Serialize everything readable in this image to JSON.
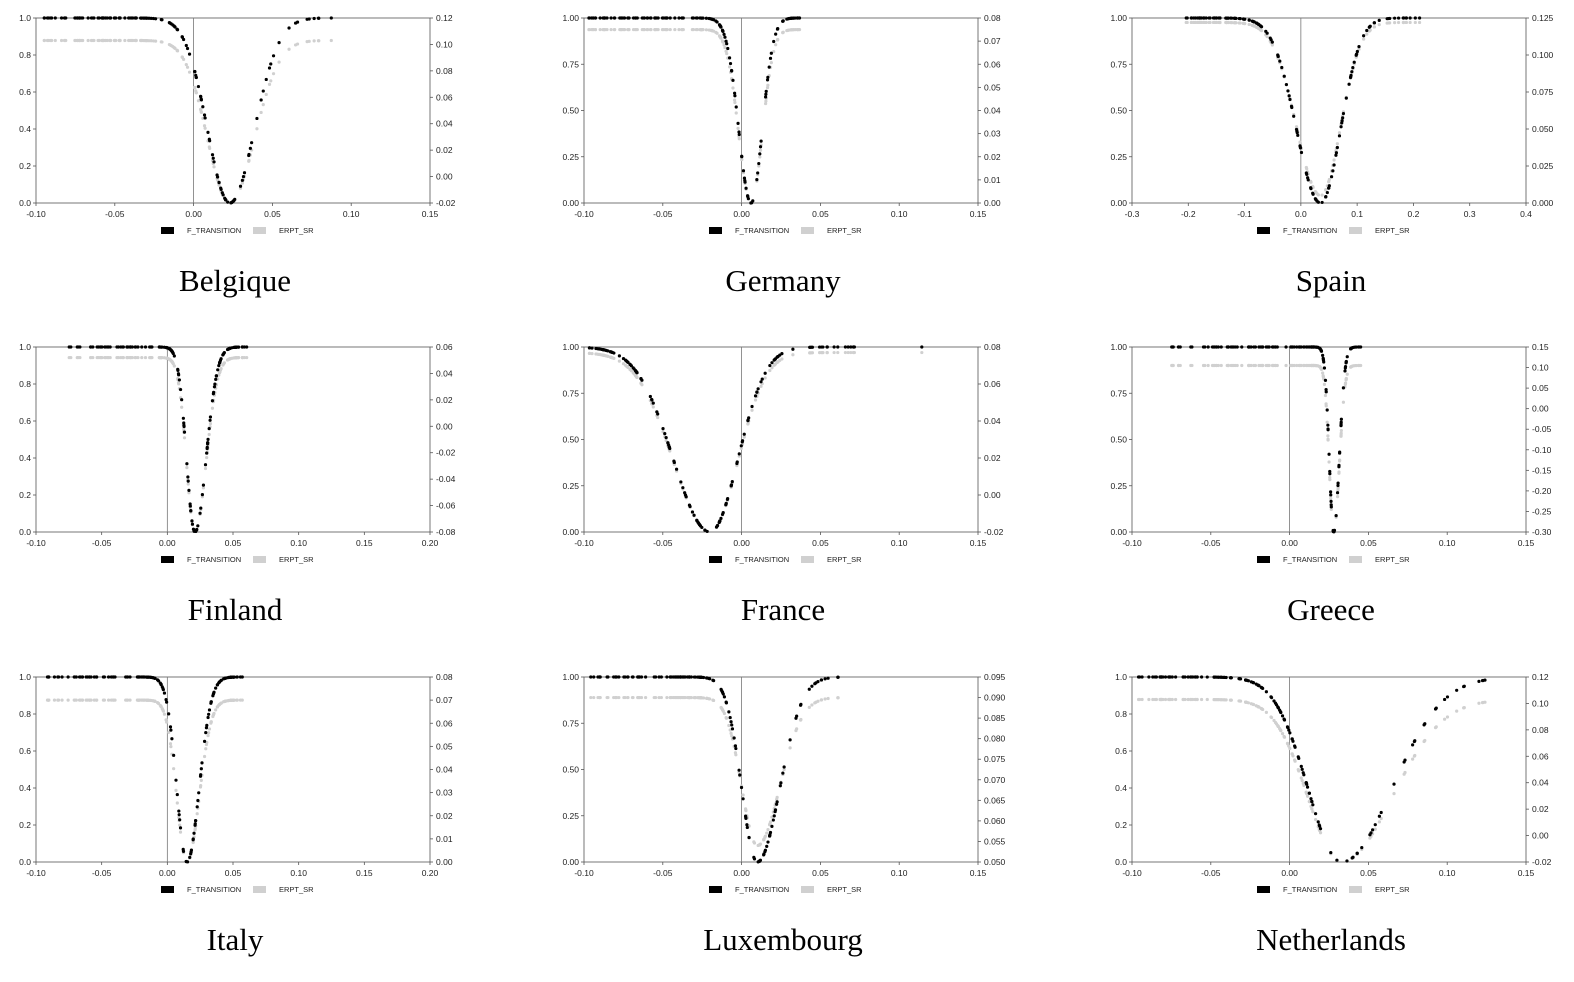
{
  "legend": {
    "series1": "F_TRANSITION",
    "series2": "ERPT_SR"
  },
  "colors": {
    "f_transition": "#000000",
    "erpt_sr": "#d0d0d0",
    "axis": "#555555"
  },
  "chart_data": [
    {
      "type": "scatter",
      "title": "Belgique",
      "xlim": [
        -0.1,
        0.15
      ],
      "xticks": [
        -0.1,
        -0.05,
        0.0,
        0.05,
        0.1,
        0.15
      ],
      "ylim": [
        0,
        1
      ],
      "yticks": [
        0.0,
        0.2,
        0.4,
        0.6,
        0.8,
        1.0
      ],
      "y2lim": [
        -0.02,
        0.12
      ],
      "y2ticks": [
        -0.02,
        0.0,
        0.02,
        0.04,
        0.06,
        0.08,
        0.1,
        0.12
      ],
      "ydec": 1,
      "y2dec": 2,
      "x_min": -0.095,
      "x_max": 0.128,
      "c": 0.023,
      "s_left": 0.02,
      "s_right": 0.022,
      "erpt_min": -0.02,
      "erpt_max": 0.103
    },
    {
      "type": "scatter",
      "title": "Germany",
      "xlim": [
        -0.1,
        0.15
      ],
      "xticks": [
        -0.1,
        -0.05,
        0.0,
        0.05,
        0.1,
        0.15
      ],
      "ylim": [
        0,
        1
      ],
      "yticks": [
        0.0,
        0.25,
        0.5,
        0.75,
        1.0
      ],
      "y2lim": [
        0.0,
        0.08
      ],
      "y2ticks": [
        0.0,
        0.01,
        0.02,
        0.03,
        0.04,
        0.05,
        0.06,
        0.07,
        0.08
      ],
      "ydec": 2,
      "y2dec": 2,
      "x_min": -0.098,
      "x_max": 0.128,
      "c": 0.006,
      "s_left": 0.011,
      "s_right": 0.01,
      "erpt_min": 0.0,
      "erpt_max": 0.075
    },
    {
      "type": "scatter",
      "title": "Spain",
      "xlim": [
        -0.3,
        0.4
      ],
      "xticks": [
        -0.3,
        -0.2,
        -0.1,
        0.0,
        0.1,
        0.2,
        0.3,
        0.4
      ],
      "ylim": [
        0,
        1
      ],
      "yticks": [
        0.0,
        0.25,
        0.5,
        0.75,
        1.0
      ],
      "y2lim": [
        0.0,
        0.125
      ],
      "y2ticks": [
        0.0,
        0.025,
        0.05,
        0.075,
        0.1,
        0.125
      ],
      "ydec": 2,
      "y2dec": 3,
      "x_min": -0.21,
      "x_max": 0.345,
      "c": 0.035,
      "s_left": 0.06,
      "s_right": 0.05,
      "erpt_min": 0.005,
      "erpt_max": 0.122
    },
    {
      "type": "scatter",
      "title": "Finland",
      "xlim": [
        -0.1,
        0.2
      ],
      "xticks": [
        -0.1,
        -0.05,
        0.0,
        0.05,
        0.1,
        0.15,
        0.2
      ],
      "ylim": [
        0,
        1
      ],
      "yticks": [
        0.0,
        0.2,
        0.4,
        0.6,
        0.8,
        1.0
      ],
      "y2lim": [
        -0.08,
        0.06
      ],
      "y2ticks": [
        -0.08,
        -0.06,
        -0.04,
        -0.02,
        0.0,
        0.02,
        0.04,
        0.06
      ],
      "ydec": 1,
      "y2dec": 2,
      "x_min": -0.075,
      "x_max": 0.175,
      "c": 0.021,
      "s_left": 0.009,
      "s_right": 0.012,
      "erpt_min": -0.08,
      "erpt_max": 0.052
    },
    {
      "type": "scatter",
      "title": "France",
      "xlim": [
        -0.1,
        0.15
      ],
      "xticks": [
        -0.1,
        -0.05,
        0.0,
        0.05,
        0.1,
        0.15
      ],
      "ylim": [
        0,
        1
      ],
      "yticks": [
        0.0,
        0.25,
        0.5,
        0.75,
        1.0
      ],
      "y2lim": [
        -0.02,
        0.08
      ],
      "y2ticks": [
        -0.02,
        0.0,
        0.02,
        0.04,
        0.06,
        0.08
      ],
      "ydec": 2,
      "y2dec": 2,
      "x_min": -0.098,
      "x_max": 0.128,
      "c": -0.02,
      "s_left": 0.033,
      "s_right": 0.025,
      "erpt_min": -0.02,
      "erpt_max": 0.077
    },
    {
      "type": "scatter",
      "title": "Greece",
      "xlim": [
        -0.1,
        0.15
      ],
      "xticks": [
        -0.1,
        -0.05,
        0.0,
        0.05,
        0.1,
        0.15
      ],
      "ylim": [
        0,
        1
      ],
      "yticks": [
        0.0,
        0.25,
        0.5,
        0.75,
        1.0
      ],
      "y2lim": [
        -0.3,
        0.15
      ],
      "y2ticks": [
        -0.3,
        -0.25,
        -0.2,
        -0.15,
        -0.1,
        -0.05,
        0.0,
        0.05,
        0.1,
        0.15
      ],
      "ydec": 2,
      "y2dec": 2,
      "x_min": -0.075,
      "x_max": 0.145,
      "c": 0.028,
      "s_left": 0.004,
      "s_right": 0.005,
      "erpt_min": -0.3,
      "erpt_max": 0.105
    },
    {
      "type": "scatter",
      "title": "Italy",
      "xlim": [
        -0.1,
        0.2
      ],
      "xticks": [
        -0.1,
        -0.05,
        0.0,
        0.05,
        0.1,
        0.15,
        0.2
      ],
      "ylim": [
        0,
        1
      ],
      "yticks": [
        0.0,
        0.2,
        0.4,
        0.6,
        0.8,
        1.0
      ],
      "y2lim": [
        0.0,
        0.08
      ],
      "y2ticks": [
        0.0,
        0.01,
        0.02,
        0.03,
        0.04,
        0.05,
        0.06,
        0.07,
        0.08
      ],
      "ydec": 1,
      "y2dec": 2,
      "x_min": -0.093,
      "x_max": 0.183,
      "c": 0.015,
      "s_left": 0.011,
      "s_right": 0.013,
      "erpt_min": 0.0,
      "erpt_max": 0.07
    },
    {
      "type": "scatter",
      "title": "Luxembourg",
      "xlim": [
        -0.1,
        0.15
      ],
      "xticks": [
        -0.1,
        -0.05,
        0.0,
        0.05,
        0.1,
        0.15
      ],
      "ylim": [
        0,
        1
      ],
      "yticks": [
        0.0,
        0.25,
        0.5,
        0.75,
        1.0
      ],
      "y2lim": [
        0.05,
        0.095
      ],
      "y2ticks": [
        0.05,
        0.055,
        0.06,
        0.065,
        0.07,
        0.075,
        0.08,
        0.085,
        0.09,
        0.095
      ],
      "ydec": 2,
      "y2dec": 3,
      "x_min": -0.096,
      "x_max": 0.128,
      "c": 0.01,
      "s_left": 0.014,
      "s_right": 0.02,
      "erpt_min": 0.054,
      "erpt_max": 0.09
    },
    {
      "type": "scatter",
      "title": "Netherlands",
      "xlim": [
        -0.1,
        0.15
      ],
      "xticks": [
        -0.1,
        -0.05,
        0.0,
        0.05,
        0.1,
        0.15
      ],
      "ylim": [
        0,
        1
      ],
      "yticks": [
        0.0,
        0.2,
        0.4,
        0.6,
        0.8,
        1.0
      ],
      "y2lim": [
        -0.02,
        0.12
      ],
      "y2ticks": [
        -0.02,
        0.0,
        0.02,
        0.04,
        0.06,
        0.08,
        0.1,
        0.12
      ],
      "ydec": 1,
      "y2dec": 2,
      "x_min": -0.098,
      "x_max": 0.128,
      "c": 0.033,
      "s_left": 0.03,
      "s_right": 0.045,
      "erpt_min": -0.02,
      "erpt_max": 0.103
    }
  ]
}
